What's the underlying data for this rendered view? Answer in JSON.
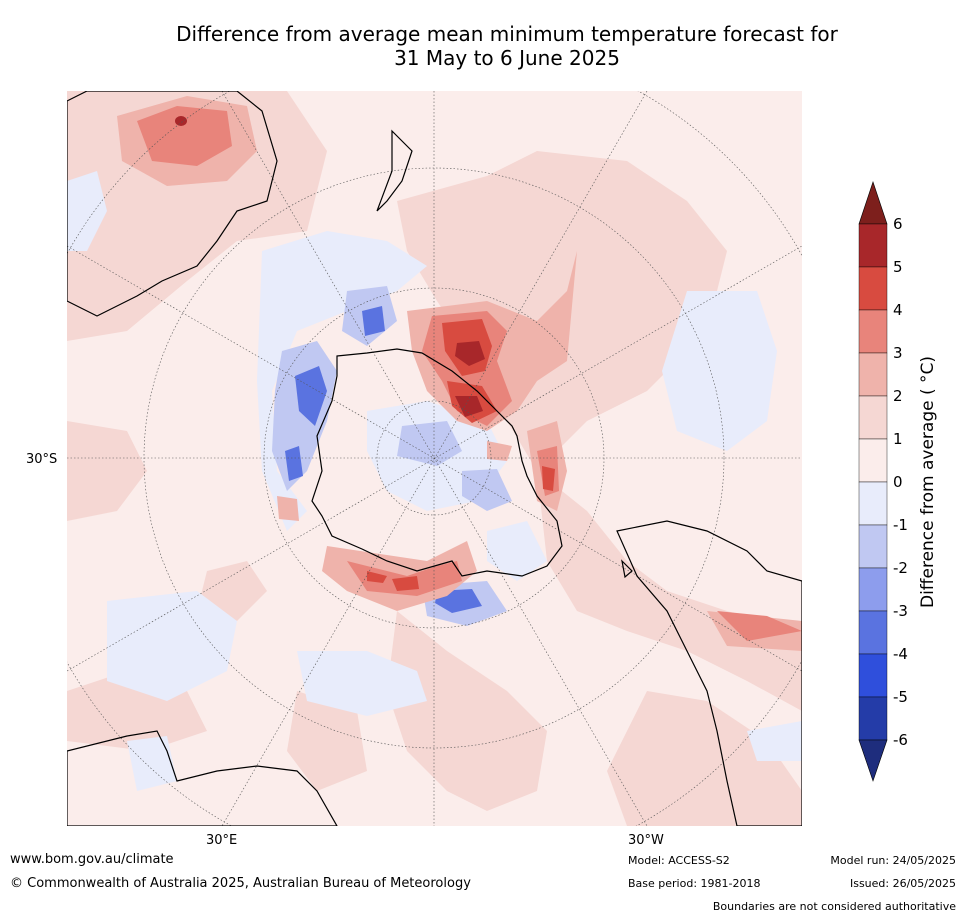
{
  "title_line1": "Difference from average mean minimum temperature forecast for",
  "title_line2": "31 May to 6 June 2025",
  "map": {
    "projection": "south-polar-stereographic",
    "lat_label": "30°S",
    "lon_labels": [
      "30°E",
      "30°W"
    ]
  },
  "colorbar": {
    "label": "Difference from average ( °C)",
    "ticks": [
      "6",
      "5",
      "4",
      "3",
      "2",
      "1",
      "0",
      "-1",
      "-2",
      "-3",
      "-4",
      "-5",
      "-6"
    ],
    "colors": [
      "#a8272a",
      "#d84b40",
      "#e8847b",
      "#efb3ab",
      "#f5d7d3",
      "#fbedeb",
      "#e8ecfb",
      "#c0c8f2",
      "#8d9ded",
      "#5a73e0",
      "#2f4fdc",
      "#243ca8"
    ],
    "over_color": "#7d1f1c",
    "under_color": "#1e2d7d"
  },
  "footer": {
    "url": "www.bom.gov.au/climate",
    "copyright": "© Commonwealth of Australia 2025, Australian Bureau of Meteorology",
    "model": "Model: ACCESS-S2",
    "base_period": "Base period: 1981-2018",
    "model_run": "Model run: 24/05/2025",
    "issued": "Issued: 26/05/2025",
    "disclaimer": "Boundaries are not considered authoritative"
  }
}
